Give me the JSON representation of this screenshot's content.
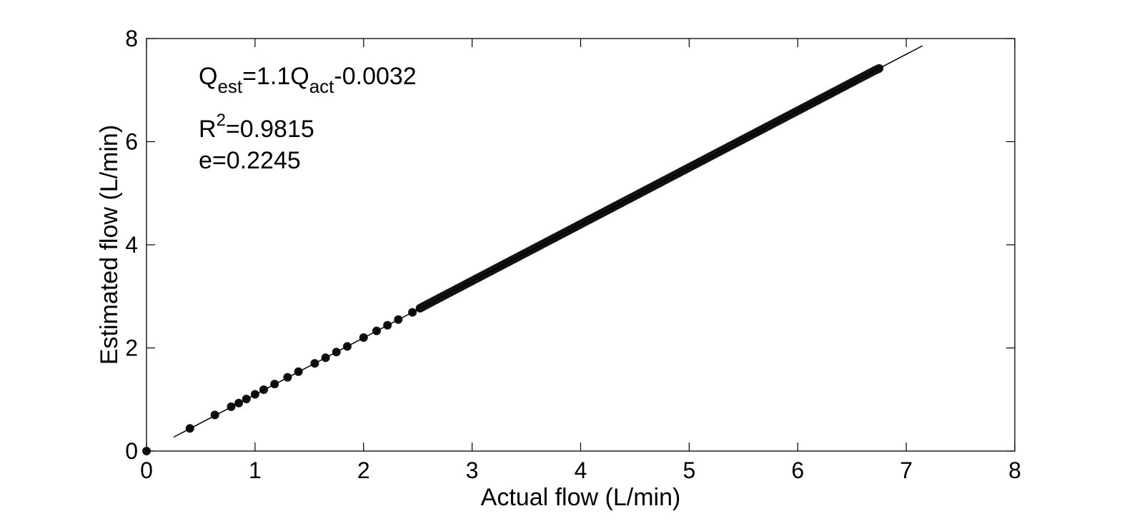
{
  "chart_data": {
    "type": "scatter",
    "title": "",
    "xlabel": "Actual flow (L/min)",
    "ylabel": "Estimated flow (L/min)",
    "xlim": [
      0,
      8
    ],
    "ylim": [
      0,
      8
    ],
    "xticks": [
      "0",
      "1",
      "2",
      "3",
      "4",
      "5",
      "6",
      "7",
      "8"
    ],
    "yticks": [
      "0",
      "2",
      "4",
      "6",
      "8"
    ],
    "grid": false,
    "legend": "none",
    "colors": {
      "points": "#111111",
      "fit_line": "#000000",
      "axes": "#000000"
    },
    "annotations": {
      "q_main": "Q",
      "q_est_sub": "est",
      "q_mid": "=1.1Q",
      "q_act_sub": "act",
      "q_tail": "-0.0032",
      "r_main": "R",
      "r_sup": "2",
      "r_tail": "=0.9815",
      "e_text": "e=0.2245"
    },
    "series": [
      {
        "type": "scatter",
        "x": [
          0.0,
          0.4,
          0.63,
          0.78,
          0.85,
          0.92,
          1.0,
          1.08,
          1.18,
          1.3,
          1.4,
          1.55,
          1.65,
          1.75,
          1.85,
          2.0,
          2.12,
          2.22,
          2.32,
          2.45,
          2.52,
          2.6,
          2.7,
          2.8,
          2.9,
          3.0,
          3.1,
          3.2,
          3.3,
          3.4,
          3.5,
          3.6,
          3.7,
          3.8,
          3.9,
          4.0,
          4.1,
          4.2,
          4.3,
          4.4,
          4.5,
          4.6,
          4.7,
          4.8,
          4.9,
          5.0,
          5.1,
          5.2,
          5.3,
          5.4,
          5.5,
          5.6,
          5.7,
          5.8,
          5.9,
          6.0,
          6.1,
          6.2,
          6.3,
          6.4,
          6.5,
          6.6,
          6.7,
          6.75
        ],
        "y": [
          0.0,
          0.44,
          0.7,
          0.86,
          0.93,
          1.01,
          1.1,
          1.19,
          1.3,
          1.43,
          1.54,
          1.7,
          1.81,
          1.92,
          2.03,
          2.2,
          2.33,
          2.44,
          2.55,
          2.69,
          2.77,
          2.86,
          2.97,
          3.08,
          3.19,
          3.3,
          3.41,
          3.52,
          3.63,
          3.74,
          3.85,
          3.96,
          4.07,
          4.18,
          4.29,
          4.4,
          4.51,
          4.62,
          4.73,
          4.84,
          4.95,
          5.06,
          5.17,
          5.28,
          5.39,
          5.5,
          5.61,
          5.72,
          5.83,
          5.94,
          6.05,
          6.16,
          6.27,
          6.38,
          6.49,
          6.6,
          6.71,
          6.82,
          6.93,
          7.04,
          7.15,
          7.26,
          7.37,
          7.42
        ]
      },
      {
        "type": "line",
        "x": [
          0.25,
          7.15
        ],
        "y": [
          0.27,
          7.86
        ]
      }
    ]
  }
}
